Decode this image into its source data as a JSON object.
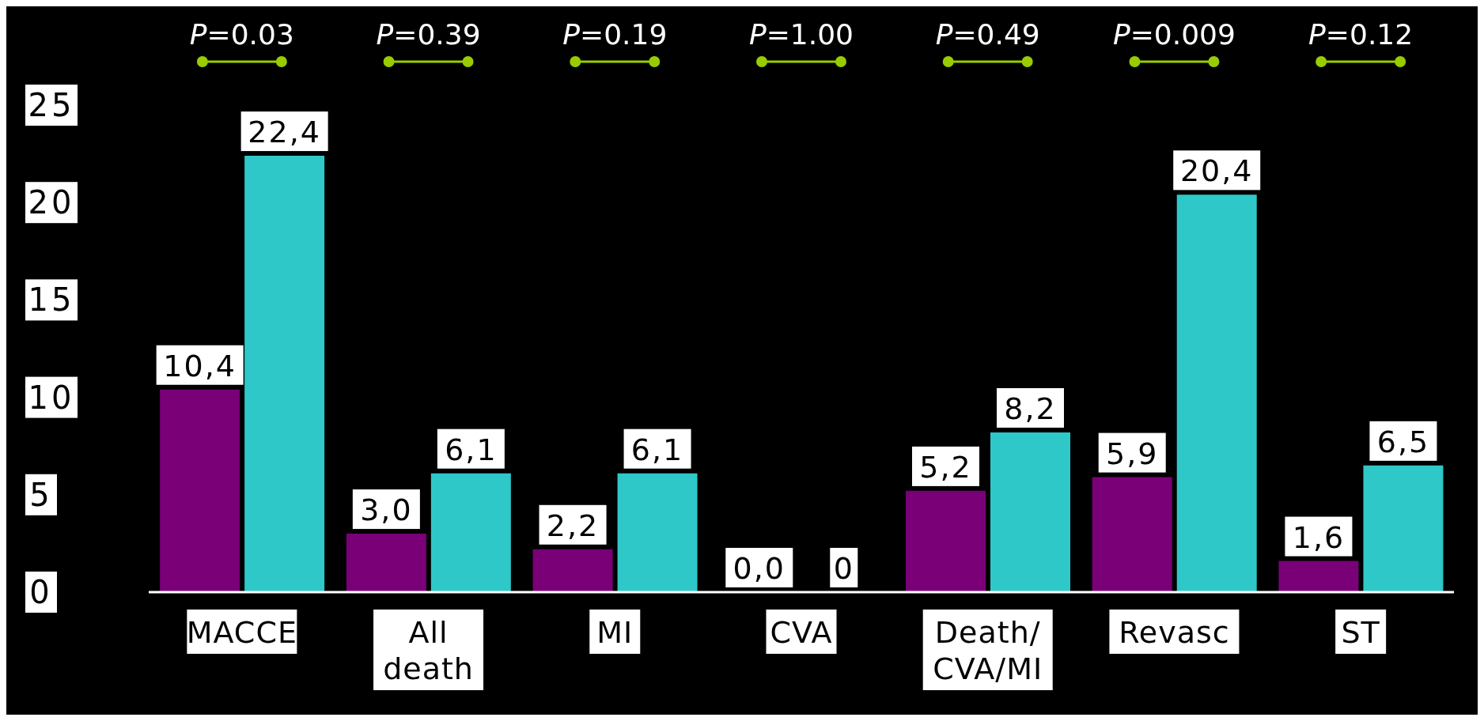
{
  "chart_data": {
    "type": "bar",
    "categories": [
      "MACCE",
      "All death",
      "MI",
      "CVA",
      "Death/CVA/MI",
      "Revasc",
      "ST"
    ],
    "series": [
      {
        "color": "#7a0078",
        "values": [
          10.4,
          3.0,
          2.2,
          0.0,
          5.2,
          5.9,
          1.6
        ],
        "value_labels": [
          "10,4",
          "3,0",
          "2,2",
          "0,0",
          "5,2",
          "5,9",
          "1,6"
        ]
      },
      {
        "color": "#2ec8c8",
        "values": [
          22.4,
          6.1,
          6.1,
          0,
          8.2,
          20.4,
          6.5
        ],
        "value_labels": [
          "22,4",
          "6,1",
          "6,1",
          "0",
          "8,2",
          "20,4",
          "6,5"
        ]
      }
    ],
    "ylim": [
      0,
      25
    ],
    "yticks": [
      0,
      5,
      10,
      15,
      20,
      25
    ],
    "grid": false,
    "legend": false,
    "annotations": [
      "P=0.03",
      "P=0.39",
      "P=0.19",
      "P=1.00",
      "P=0.49",
      "P=0.009",
      "P=0.12"
    ]
  }
}
